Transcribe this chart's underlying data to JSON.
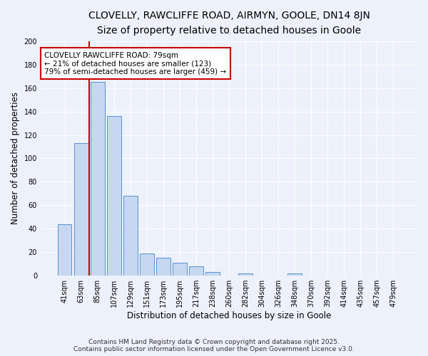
{
  "title_line1": "CLOVELLY, RAWCLIFFE ROAD, AIRMYN, GOOLE, DN14 8JN",
  "title_line2": "Size of property relative to detached houses in Goole",
  "xlabel": "Distribution of detached houses by size in Goole",
  "ylabel": "Number of detached properties",
  "categories": [
    "41sqm",
    "63sqm",
    "85sqm",
    "107sqm",
    "129sqm",
    "151sqm",
    "173sqm",
    "195sqm",
    "217sqm",
    "238sqm",
    "260sqm",
    "282sqm",
    "304sqm",
    "326sqm",
    "348sqm",
    "370sqm",
    "392sqm",
    "414sqm",
    "435sqm",
    "457sqm",
    "479sqm"
  ],
  "values": [
    44,
    113,
    165,
    136,
    68,
    19,
    15,
    11,
    8,
    3,
    0,
    2,
    0,
    0,
    2,
    0,
    0,
    0,
    0,
    0,
    0
  ],
  "bar_color": "#c5d8f0",
  "bar_edge_color": "#5b8fcc",
  "annotation_line1": "CLOVELLY RAWCLIFFE ROAD: 79sqm",
  "annotation_line2": "← 21% of detached houses are smaller (123)",
  "annotation_line3": "79% of semi-detached houses are larger (459) →",
  "vline_x_index": 1.5,
  "vline_color": "#cc0000",
  "annotation_box_color": "#cc0000",
  "annotation_box_fill": "#ffffff",
  "footer_line1": "Contains HM Land Registry data © Crown copyright and database right 2025.",
  "footer_line2": "Contains public sector information licensed under the Open Government Licence v3.0.",
  "ylim": [
    0,
    200
  ],
  "yticks": [
    0,
    20,
    40,
    60,
    80,
    100,
    120,
    140,
    160,
    180,
    200
  ],
  "bg_color": "#edf1fb",
  "grid_color": "#ffffff",
  "title_fontsize": 10,
  "subtitle_fontsize": 9,
  "axis_label_fontsize": 8.5,
  "tick_fontsize": 7,
  "annotation_fontsize": 7.5,
  "footer_fontsize": 6.5
}
